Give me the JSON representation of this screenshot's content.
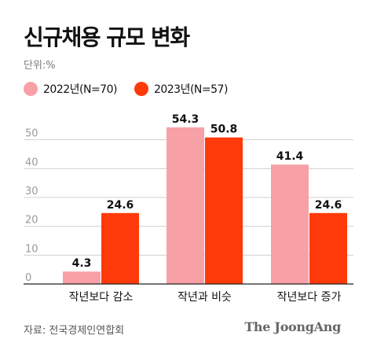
{
  "title": "신규채용 규모 변화",
  "unit": "단위:%",
  "source": "자료: 전국경제인연합회",
  "brand": "The JoongAng",
  "colors": {
    "series_2022": "#f7a1a6",
    "series_2023": "#ff3a0a",
    "grid": "#d0d0d0",
    "tick": "#999999"
  },
  "chart_data": {
    "type": "bar",
    "categories": [
      "작년보다 감소",
      "작년과 비슷",
      "작년보다 증가"
    ],
    "series": [
      {
        "name": "2022년(N=70)",
        "values": [
          4.3,
          54.3,
          41.4
        ]
      },
      {
        "name": "2023년(N=57)",
        "values": [
          24.6,
          50.8,
          24.6
        ]
      }
    ],
    "ylim": [
      0,
      60
    ],
    "yticks": [
      0,
      10,
      20,
      30,
      40,
      50
    ],
    "grid": true,
    "legend": "top-left"
  }
}
